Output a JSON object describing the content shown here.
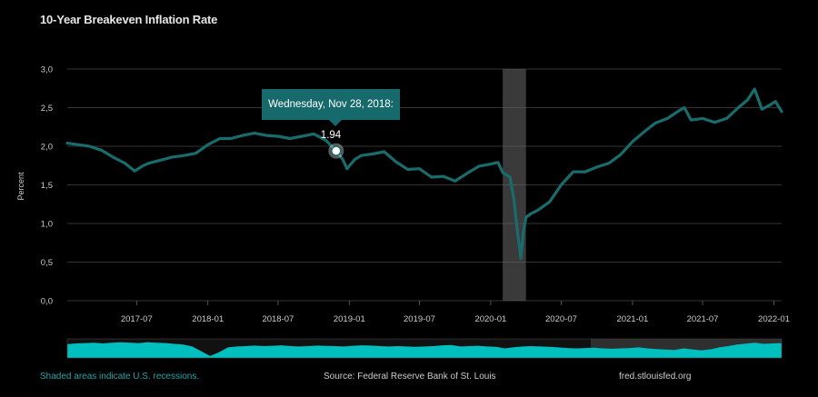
{
  "title": "10-Year Breakeven Inflation Rate",
  "colors": {
    "background": "#000000",
    "series": "#1a6b6b",
    "recession": "#3a3a3a",
    "navigator": "#00bfbf",
    "grid": "#666666",
    "text": "#cccccc",
    "footer_recession_note": "#1fa6a6"
  },
  "tooltip": {
    "text": "Wednesday, Nov 28, 2018: 1.94",
    "date": "2018-11-28",
    "value": 1.94
  },
  "footer": {
    "recession_note": "Shaded areas indicate U.S. recessions.",
    "source": "Source: Federal Reserve Bank of St. Louis",
    "site": "fred.stlouisfed.org"
  },
  "chart_data": {
    "type": "line",
    "title": "10-Year Breakeven Inflation Rate",
    "ylabel": "Percent",
    "xlabel": "",
    "ylim": [
      0,
      3
    ],
    "xlim": [
      "2017-01-03",
      "2022-01-21"
    ],
    "yticks": [
      "0,0",
      "0,5",
      "1,0",
      "1,5",
      "2,0",
      "2,5",
      "3,0"
    ],
    "ytick_values": [
      0,
      0.5,
      1.0,
      1.5,
      2.0,
      2.5,
      3.0
    ],
    "xticks": [
      "2017-07",
      "2018-01",
      "2018-07",
      "2019-01",
      "2019-07",
      "2020-01",
      "2020-07",
      "2021-01",
      "2021-07",
      "2022-01"
    ],
    "xtick_dates": [
      "2017-07-01",
      "2018-01-01",
      "2018-07-01",
      "2019-01-01",
      "2019-07-01",
      "2020-01-01",
      "2020-07-01",
      "2021-01-01",
      "2021-07-01",
      "2022-01-01"
    ],
    "grid": true,
    "legend": "none",
    "recessions": [
      {
        "start": "2020-02-01",
        "end": "2020-04-01"
      }
    ],
    "series": [
      {
        "x": [
          "2017-01-03",
          "2017-02-01",
          "2017-03-01",
          "2017-04-01",
          "2017-05-01",
          "2017-06-01",
          "2017-06-26",
          "2017-07-15",
          "2017-08-01",
          "2017-09-01",
          "2017-10-01",
          "2017-11-01",
          "2017-12-01",
          "2018-01-01",
          "2018-02-01",
          "2018-03-01",
          "2018-04-01",
          "2018-05-01",
          "2018-06-01",
          "2018-07-01",
          "2018-08-01",
          "2018-09-01",
          "2018-10-01",
          "2018-11-01",
          "2018-11-28",
          "2018-12-15",
          "2018-12-26",
          "2019-01-15",
          "2019-02-01",
          "2019-03-01",
          "2019-04-01",
          "2019-05-01",
          "2019-06-01",
          "2019-07-01",
          "2019-08-01",
          "2019-09-01",
          "2019-10-01",
          "2019-11-01",
          "2019-12-01",
          "2020-01-01",
          "2020-01-20",
          "2020-02-01",
          "2020-02-20",
          "2020-03-01",
          "2020-03-10",
          "2020-03-19",
          "2020-03-25",
          "2020-04-01",
          "2020-04-15",
          "2020-05-01",
          "2020-06-01",
          "2020-07-01",
          "2020-08-01",
          "2020-09-01",
          "2020-10-01",
          "2020-11-01",
          "2020-12-01",
          "2021-01-01",
          "2021-02-01",
          "2021-03-01",
          "2021-04-01",
          "2021-05-01",
          "2021-05-15",
          "2021-06-01",
          "2021-07-01",
          "2021-08-01",
          "2021-09-01",
          "2021-10-01",
          "2021-10-25",
          "2021-11-12",
          "2021-12-01",
          "2021-12-20",
          "2022-01-05",
          "2022-01-21"
        ],
        "y": [
          2.04,
          2.02,
          2.0,
          1.95,
          1.86,
          1.78,
          1.68,
          1.74,
          1.78,
          1.82,
          1.86,
          1.88,
          1.91,
          2.02,
          2.1,
          2.1,
          2.14,
          2.17,
          2.14,
          2.13,
          2.1,
          2.13,
          2.16,
          2.08,
          1.94,
          1.83,
          1.71,
          1.83,
          1.88,
          1.9,
          1.93,
          1.8,
          1.7,
          1.71,
          1.6,
          1.61,
          1.55,
          1.65,
          1.74,
          1.77,
          1.79,
          1.66,
          1.6,
          1.3,
          0.9,
          0.55,
          0.88,
          1.08,
          1.13,
          1.17,
          1.28,
          1.5,
          1.67,
          1.67,
          1.73,
          1.78,
          1.89,
          2.06,
          2.19,
          2.3,
          2.36,
          2.46,
          2.5,
          2.34,
          2.36,
          2.31,
          2.36,
          2.5,
          2.6,
          2.74,
          2.48,
          2.53,
          2.58,
          2.45
        ]
      }
    ]
  }
}
